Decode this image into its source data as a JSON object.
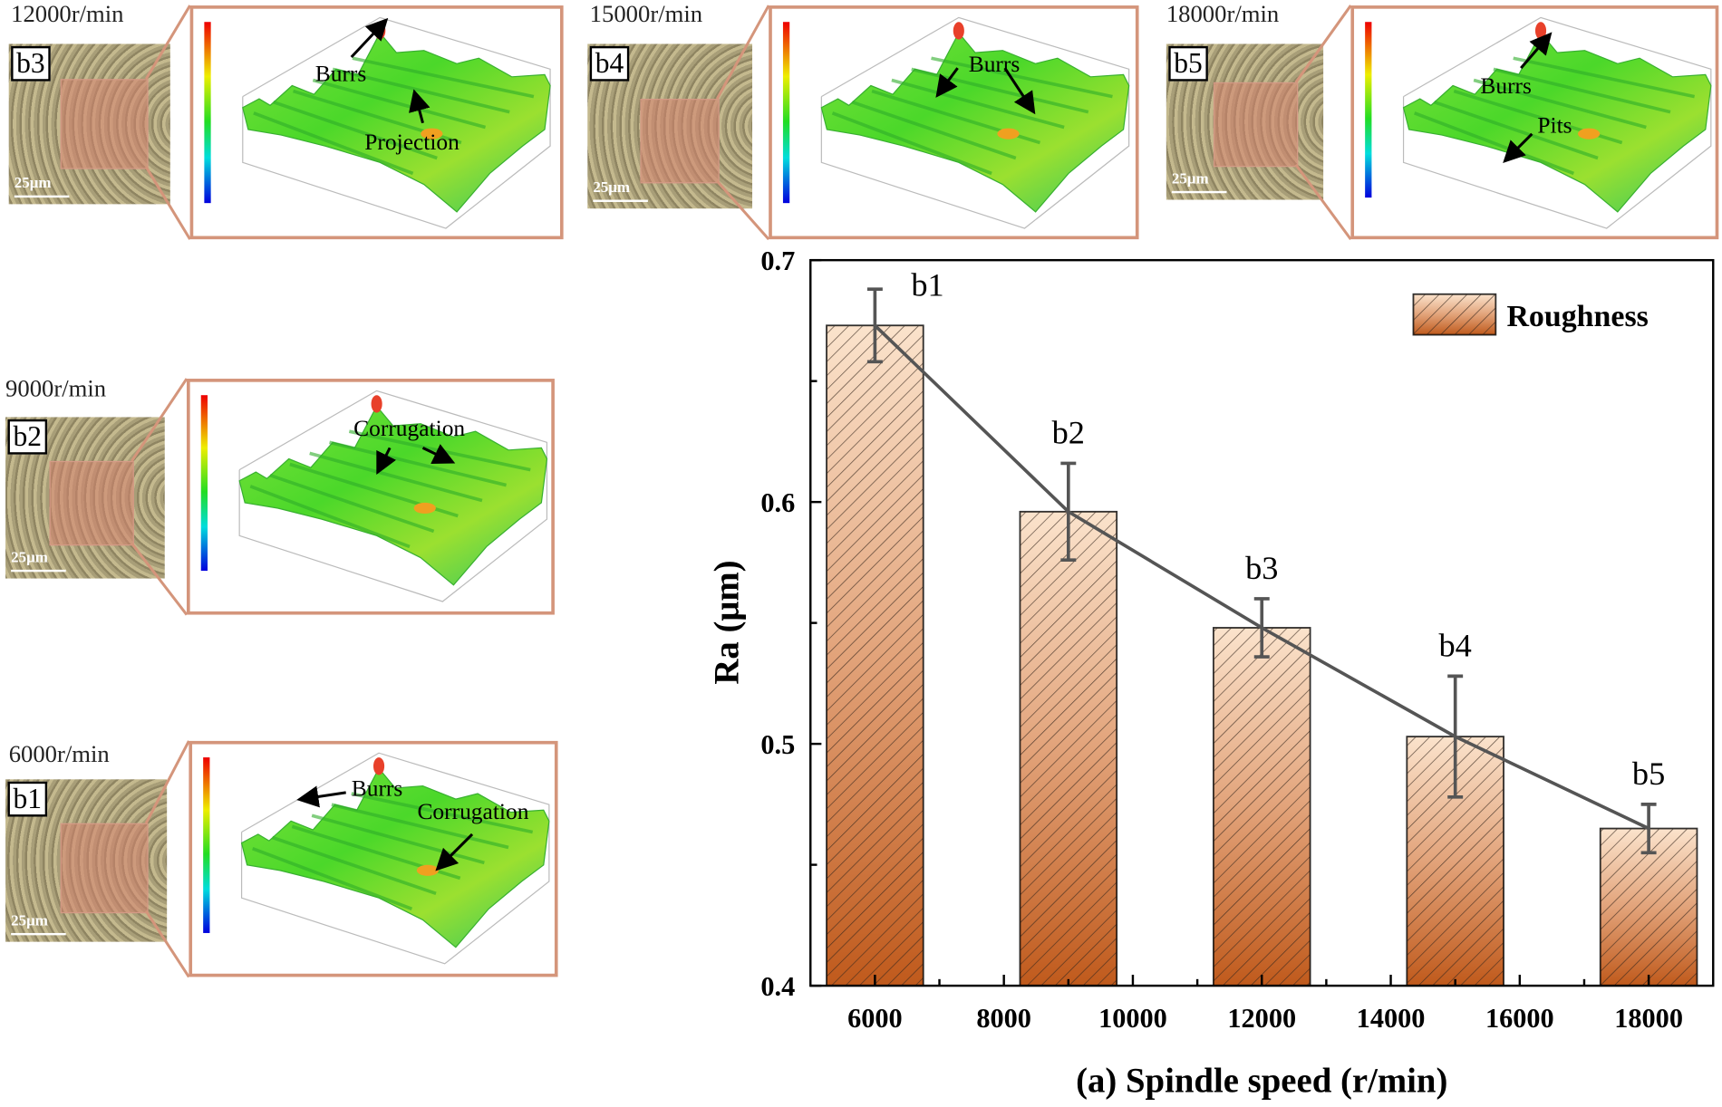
{
  "panels": [
    {
      "id": "b3",
      "speed": "12000r/min",
      "scale": "25μm",
      "annotations": [
        "Burrs",
        "Projection"
      ]
    },
    {
      "id": "b4",
      "speed": "15000r/min",
      "scale": "25μm",
      "annotations": [
        "Burrs"
      ]
    },
    {
      "id": "b5",
      "speed": "18000r/min",
      "scale": "25μm",
      "annotations": [
        "Burrs",
        "Pits"
      ]
    },
    {
      "id": "b2",
      "speed": "9000r/min",
      "scale": "25μm",
      "annotations": [
        "Corrugation"
      ]
    },
    {
      "id": "b1",
      "speed": "6000r/min",
      "scale": "25μm",
      "annotations": [
        "Burrs",
        "Corrugation"
      ]
    }
  ],
  "colors": {
    "panel_border": "#d4957b",
    "bar_top": "#fbe3cc",
    "bar_bottom": "#c05a1c",
    "line": "#555555"
  },
  "chart_data": {
    "type": "bar",
    "xlabel": "(a) Spindle speed (r/min)",
    "ylabel": "Ra (μm)",
    "x": [
      6000,
      9000,
      12000,
      15000,
      18000
    ],
    "values": [
      0.673,
      0.596,
      0.548,
      0.503,
      0.465
    ],
    "errors": [
      0.015,
      0.02,
      0.012,
      0.025,
      0.01
    ],
    "data_labels": [
      "b1",
      "b2",
      "b3",
      "b4",
      "b5"
    ],
    "series_name": "Roughness",
    "xlim": [
      5000,
      19000
    ],
    "ylim": [
      0.4,
      0.7
    ],
    "xticks": [
      "6000",
      "8000",
      "10000",
      "12000",
      "14000",
      "16000",
      "18000"
    ],
    "yticks": [
      "0.4",
      "0.5",
      "0.6",
      "0.7"
    ],
    "overlay_line": true,
    "grid": false,
    "legend": "top-right"
  }
}
